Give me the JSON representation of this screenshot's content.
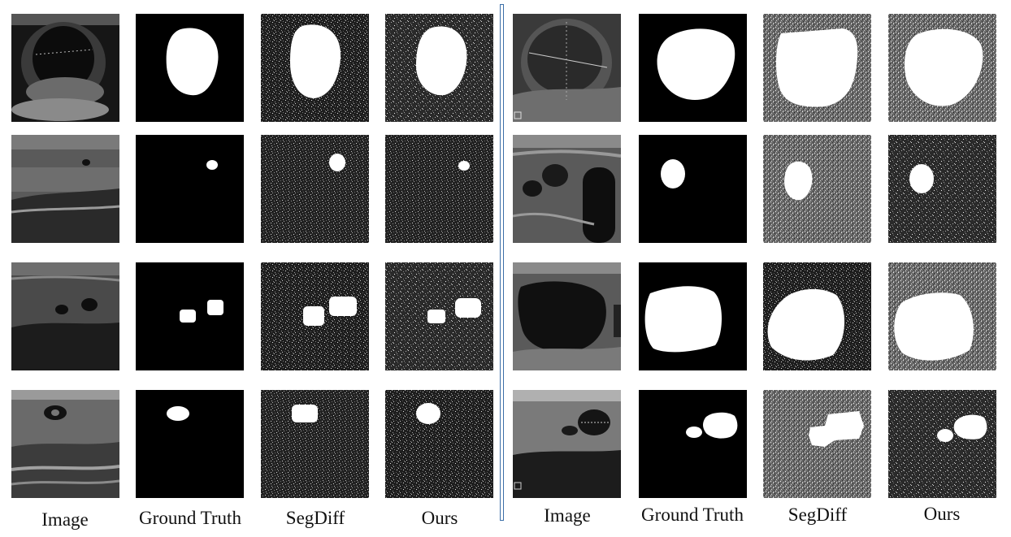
{
  "figure": {
    "panels": [
      {
        "name": "left",
        "columns": [
          {
            "label": "Image",
            "kind": "image"
          },
          {
            "label": "Ground Truth",
            "kind": "mask"
          },
          {
            "label": "SegDiff",
            "kind": "noisy-mask"
          },
          {
            "label": "Ours",
            "kind": "noisy-mask"
          }
        ]
      },
      {
        "name": "right",
        "columns": [
          {
            "label": "Image",
            "kind": "image"
          },
          {
            "label": "Ground Truth",
            "kind": "mask"
          },
          {
            "label": "SegDiff",
            "kind": "noisy-mask"
          },
          {
            "label": "Ours",
            "kind": "noisy-mask"
          }
        ]
      }
    ],
    "rows": 4,
    "colors": {
      "background": "#ffffff",
      "mask_fill": "#ffffff",
      "mask_background": "#000000",
      "divider": "#3c6fa8",
      "label_text": "#111111"
    }
  }
}
